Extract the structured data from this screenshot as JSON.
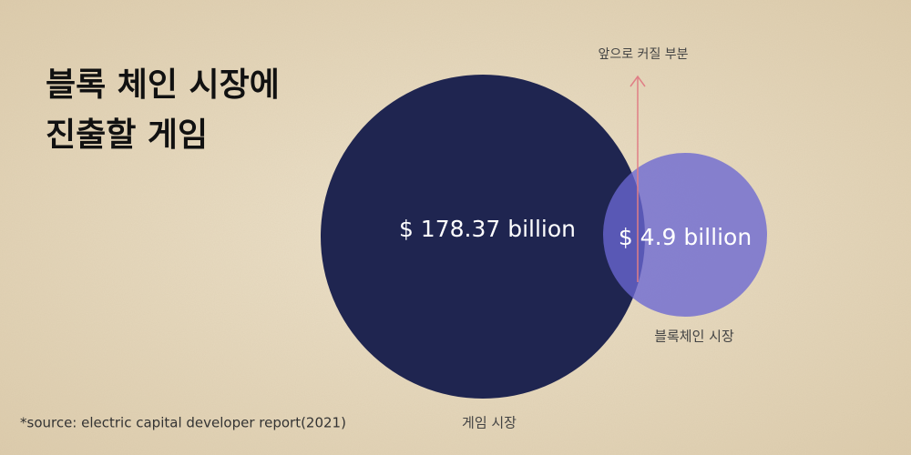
{
  "title": {
    "lines": [
      "블록 체인 시장에",
      "진출할 게임"
    ]
  },
  "circles": [
    {
      "label": "$ 178.37 billion",
      "caption": "게임 시장"
    },
    {
      "label": "$ 4.9 billion",
      "caption": "블록체인 시장"
    }
  ],
  "annotation": "앞으로 커질 부분",
  "source": "*source: electric capital developer report(2021)"
}
